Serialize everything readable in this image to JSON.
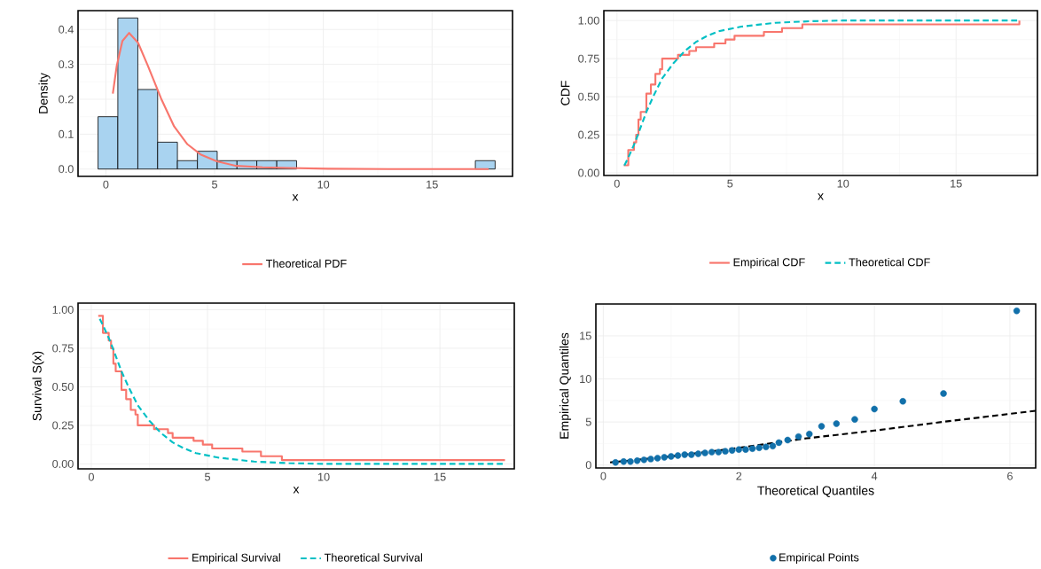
{
  "chart_data": [
    {
      "type": "histogram",
      "xlabel": "x",
      "ylabel": "Density",
      "bins": [
        -0.36,
        0.55,
        1.47,
        2.38,
        3.29,
        4.21,
        5.12,
        6.03,
        6.94,
        7.86,
        8.77,
        9.68,
        10.6,
        11.51,
        12.42,
        13.34,
        14.25,
        15.16,
        16.07,
        16.99,
        17.9
      ],
      "values": [
        0.15,
        0.433,
        0.228,
        0.077,
        0.024,
        0.051,
        0.024,
        0.024,
        0.024,
        0.024,
        0,
        0,
        0,
        0,
        0,
        0,
        0,
        0,
        0,
        0.024
      ],
      "color": "#a9d3f0",
      "series": [
        {
          "name": "Theoretical PDF",
          "type": "line",
          "color": "#f8766d",
          "line_style": "solid",
          "x": [
            0.32,
            0.5,
            0.76,
            1.07,
            1.48,
            1.93,
            2.54,
            3.14,
            3.75,
            4.35,
            5.1,
            6.0,
            7.2,
            8.4,
            10.2,
            13,
            17.6
          ],
          "values": [
            0.216,
            0.296,
            0.367,
            0.39,
            0.362,
            0.296,
            0.202,
            0.122,
            0.071,
            0.042,
            0.022,
            0.009,
            0.005,
            0.003,
            0.001,
            0,
            0
          ]
        }
      ],
      "xlim": [
        -1.28,
        18.7
      ],
      "ylim": [
        -0.021,
        0.454
      ],
      "xticks": [
        0,
        5,
        10,
        15
      ],
      "yticks": [
        {
          "value": 0,
          "label": "0.0"
        },
        {
          "value": 0.1,
          "label": "0.1"
        },
        {
          "value": 0.2,
          "label": "0.2"
        },
        {
          "value": 0.3,
          "label": "0.3"
        },
        {
          "value": 0.4,
          "label": "0.4"
        }
      ],
      "grid": true,
      "legend": "bottom"
    },
    {
      "type": "line",
      "xlabel": "x",
      "ylabel": "CDF",
      "series": [
        {
          "name": "Empirical CDF",
          "type": "step",
          "color": "#f8766d",
          "line_style": "solid",
          "x": [
            0.3,
            0.5,
            0.75,
            0.85,
            0.95,
            1.05,
            1.3,
            1.5,
            1.7,
            1.9,
            2.0,
            2.7,
            3.2,
            3.5,
            4.3,
            4.8,
            5.2,
            6.5,
            7.3,
            8.2,
            17.8
          ],
          "values": [
            0.05,
            0.15,
            0.2,
            0.25,
            0.35,
            0.4,
            0.52,
            0.58,
            0.65,
            0.68,
            0.75,
            0.775,
            0.8,
            0.825,
            0.85,
            0.875,
            0.9,
            0.925,
            0.95,
            0.975,
            1.0
          ]
        },
        {
          "name": "Theoretical CDF",
          "type": "line",
          "color": "#00bfc4",
          "line_style": "dashed",
          "x": [
            0.3,
            0.5,
            0.8,
            1.0,
            1.3,
            1.6,
            2.0,
            2.5,
            3.0,
            3.5,
            4.0,
            4.5,
            5.5,
            7,
            8.5,
            10,
            17.7
          ],
          "values": [
            0.04,
            0.1,
            0.2,
            0.28,
            0.4,
            0.5,
            0.62,
            0.72,
            0.8,
            0.86,
            0.9,
            0.93,
            0.96,
            0.985,
            0.995,
            1.0,
            1.0
          ]
        }
      ],
      "xlim": [
        -0.58,
        18.6
      ],
      "ylim": [
        -0.017,
        1.065
      ],
      "xticks": [
        0,
        5,
        10,
        15
      ],
      "yticks": [
        {
          "value": 0,
          "label": "0.00"
        },
        {
          "value": 0.25,
          "label": "0.25"
        },
        {
          "value": 0.5,
          "label": "0.50"
        },
        {
          "value": 0.75,
          "label": "0.75"
        },
        {
          "value": 1,
          "label": "1.00"
        }
      ],
      "grid": true,
      "legend": "bottom"
    },
    {
      "type": "line",
      "xlabel": "x",
      "ylabel": "Survival S(x)",
      "series": [
        {
          "name": "Empirical Survival",
          "type": "step",
          "color": "#f8766d",
          "line_style": "solid",
          "x": [
            0.3,
            0.5,
            0.75,
            0.85,
            0.95,
            1.05,
            1.3,
            1.5,
            1.7,
            1.9,
            2.0,
            2.7,
            3.3,
            3.5,
            4.4,
            4.8,
            5.2,
            6.5,
            7.3,
            8.2,
            17.8
          ],
          "values": [
            0.96,
            0.85,
            0.8,
            0.75,
            0.65,
            0.6,
            0.48,
            0.42,
            0.35,
            0.32,
            0.25,
            0.225,
            0.2,
            0.17,
            0.15,
            0.125,
            0.1,
            0.08,
            0.05,
            0.025,
            0.025
          ]
        },
        {
          "name": "Theoretical Survival",
          "type": "line",
          "color": "#00bfc4",
          "line_style": "dashed",
          "x": [
            0.3,
            0.5,
            0.8,
            1.0,
            1.3,
            1.6,
            2.0,
            2.5,
            3.0,
            3.5,
            4.0,
            4.5,
            5.5,
            7,
            8.5,
            10,
            17.7
          ],
          "values": [
            0.96,
            0.9,
            0.8,
            0.72,
            0.6,
            0.5,
            0.38,
            0.28,
            0.2,
            0.14,
            0.1,
            0.07,
            0.04,
            0.015,
            0.005,
            0.0,
            0.0
          ]
        }
      ],
      "xlim": [
        -0.57,
        18.2
      ],
      "ylim": [
        -0.032,
        1.043
      ],
      "xticks": [
        0,
        5,
        10,
        15
      ],
      "yticks": [
        {
          "value": 0,
          "label": "0.00"
        },
        {
          "value": 0.25,
          "label": "0.25"
        },
        {
          "value": 0.5,
          "label": "0.50"
        },
        {
          "value": 0.75,
          "label": "0.75"
        },
        {
          "value": 1,
          "label": "1.00"
        }
      ],
      "grid": true,
      "legend": "bottom"
    },
    {
      "type": "scatter",
      "xlabel": "Theoretical Quantiles",
      "ylabel": "Empirical Quantiles",
      "series": [
        {
          "type": "line",
          "color": "#000000",
          "line_style": "dashed",
          "x": [
            0.1,
            1,
            2,
            3,
            4,
            5,
            6.38
          ],
          "values": [
            0.3,
            1.0,
            2.0,
            3.1,
            4.0,
            5.0,
            6.3
          ]
        },
        {
          "name": "Empirical Points",
          "type": "scatter",
          "color": "#1170aa",
          "x": [
            0.18,
            0.3,
            0.4,
            0.5,
            0.6,
            0.7,
            0.8,
            0.9,
            1.0,
            1.1,
            1.2,
            1.3,
            1.4,
            1.5,
            1.6,
            1.7,
            1.8,
            1.9,
            2.0,
            2.1,
            2.2,
            2.3,
            2.4,
            2.5,
            2.59,
            2.72,
            2.88,
            3.04,
            3.22,
            3.44,
            3.71,
            4.0,
            4.42,
            5.02,
            6.1
          ],
          "values": [
            0.3,
            0.4,
            0.4,
            0.5,
            0.6,
            0.7,
            0.8,
            0.9,
            1.0,
            1.1,
            1.2,
            1.2,
            1.3,
            1.4,
            1.5,
            1.5,
            1.6,
            1.7,
            1.8,
            1.8,
            1.9,
            2.0,
            2.1,
            2.2,
            2.6,
            2.9,
            3.3,
            3.6,
            4.5,
            4.8,
            5.3,
            6.5,
            7.4,
            8.3,
            17.9
          ]
        }
      ],
      "xlim": [
        -0.11,
        6.38
      ],
      "ylim": [
        -0.34,
        18.7
      ],
      "xticks": [
        0,
        2,
        4,
        6
      ],
      "yticks": [
        0,
        5,
        10,
        15
      ],
      "grid": true,
      "legend": "bottom"
    }
  ]
}
